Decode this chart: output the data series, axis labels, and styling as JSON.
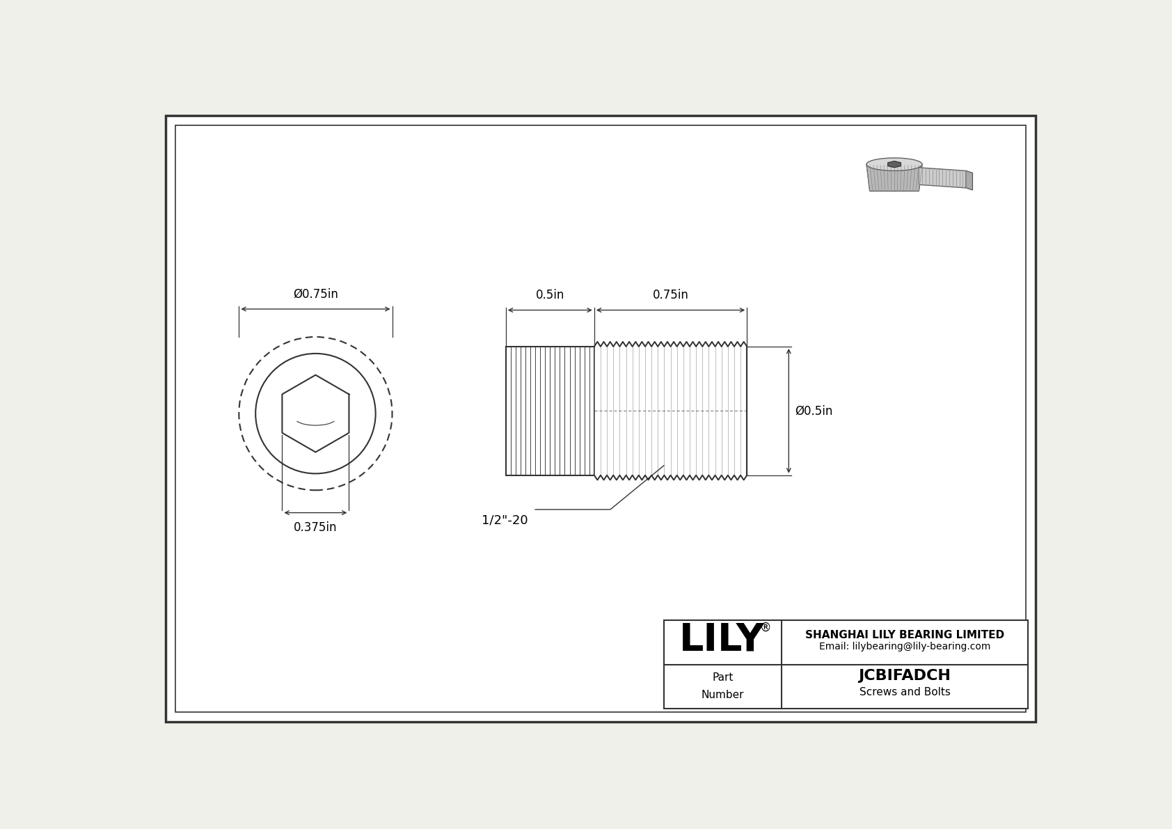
{
  "bg_color": "#f0f0eb",
  "border_color": "#333333",
  "line_color": "#333333",
  "line_width": 1.5,
  "thin_line": 0.8,
  "title_company": "SHANGHAI LILY BEARING LIMITED",
  "title_email": "Email: lilybearing@lily-bearing.com",
  "part_number": "JCBIFADCH",
  "part_category": "Screws and Bolts",
  "part_label": "Part\nNumber",
  "logo_text": "LILY",
  "logo_reg": "®",
  "dim_head_diameter": "Ø0.75in",
  "dim_thread_diameter": "Ø0.5in",
  "dim_head_length": "0.5in",
  "dim_thread_length": "0.75in",
  "dim_hex_socket": "0.375in",
  "dim_thread_spec": "1/2\"-20"
}
